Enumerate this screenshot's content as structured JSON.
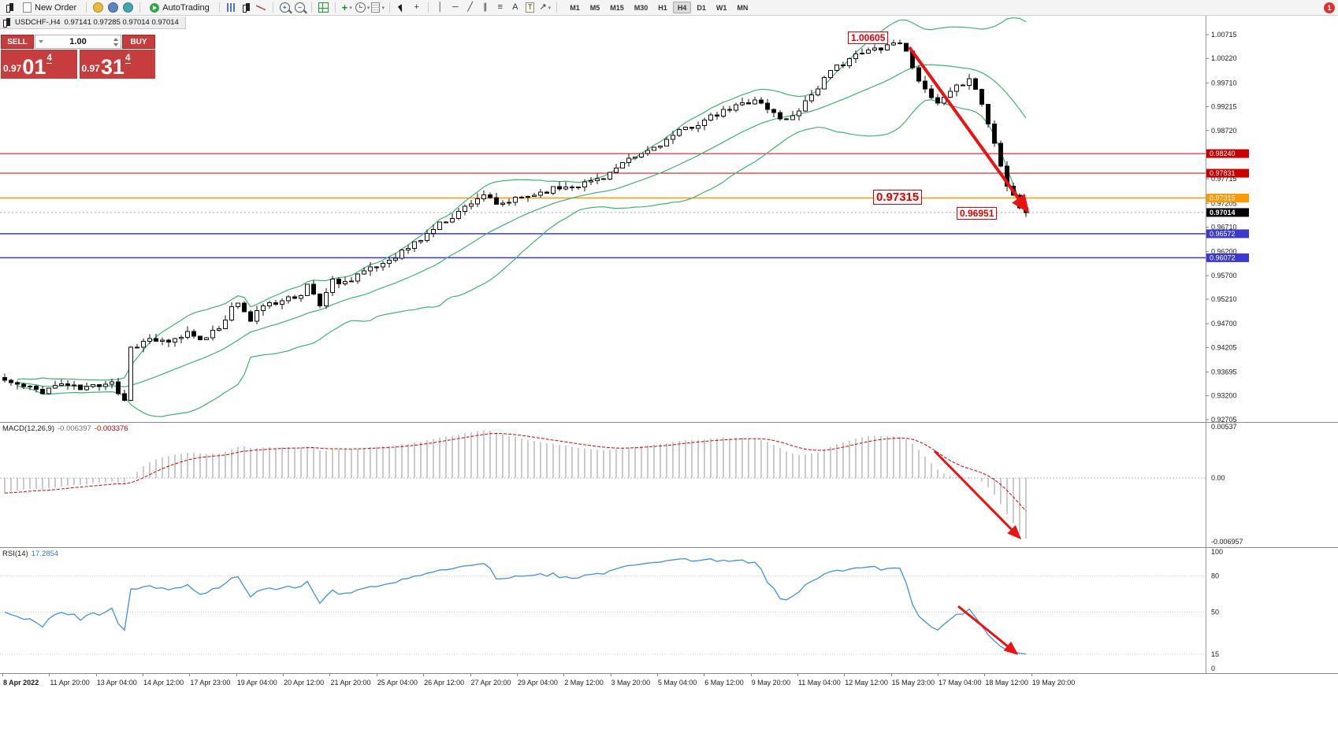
{
  "toolbar": {
    "new_order": "New Order",
    "autotrading": "AutoTrading",
    "timeframes": [
      "M1",
      "M5",
      "M15",
      "M30",
      "H1",
      "H4",
      "D1",
      "W1",
      "MN"
    ],
    "active_timeframe": "H4",
    "notification_count": "1",
    "icons": [
      {
        "t": "icon",
        "name": "chart-window-icon",
        "cls": "ic-candles"
      },
      {
        "t": "btn",
        "name": "new-order-button",
        "icon": "ic-doc",
        "label": "New Order"
      },
      {
        "t": "sep"
      },
      {
        "t": "icon",
        "name": "deposit-icon",
        "cls": "ic-coin"
      },
      {
        "t": "icon",
        "name": "profile-icon",
        "cls": "ic-person"
      },
      {
        "t": "icon",
        "name": "community-icon",
        "cls": "ic-globe"
      },
      {
        "t": "sep"
      },
      {
        "t": "btn",
        "name": "autotrading-button",
        "icon": "ic-play",
        "label": "AutoTrading"
      },
      {
        "t": "sep"
      },
      {
        "t": "icon",
        "name": "bar-chart-icon",
        "cls": "ic-bars"
      },
      {
        "t": "icon",
        "name": "candlestick-chart-icon",
        "cls": "ic-candles"
      },
      {
        "t": "icon",
        "name": "line-chart-icon",
        "cls": "ic-line"
      },
      {
        "t": "sep"
      },
      {
        "t": "icon",
        "name": "zoom-in-icon",
        "cls": "ic-zoom",
        "glyph": "+"
      },
      {
        "t": "icon",
        "name": "zoom-out-icon",
        "cls": "ic-zoom",
        "glyph": "−"
      },
      {
        "t": "sep"
      },
      {
        "t": "icon",
        "name": "tile-windows-icon",
        "cls": "ic-grid"
      },
      {
        "t": "sep"
      },
      {
        "t": "icon",
        "name": "indicators-icon",
        "cls": "ic-ind",
        "glyph": "+",
        "caret": true
      },
      {
        "t": "icon",
        "name": "periods-icon",
        "cls": "ic-clock",
        "caret": true
      },
      {
        "t": "icon",
        "name": "templates-icon",
        "cls": "ic-tpl",
        "caret": true
      },
      {
        "t": "sep"
      },
      {
        "t": "icon",
        "name": "cursor-icon",
        "cls": "ic-cursor"
      },
      {
        "t": "icon",
        "name": "crosshair-icon",
        "cls": "ic-glyph",
        "glyph": "+"
      },
      {
        "t": "sep"
      },
      {
        "t": "icon",
        "name": "vertical-line-icon",
        "cls": "ic-glyph",
        "glyph": "│"
      },
      {
        "t": "icon",
        "name": "horizontal-line-icon",
        "cls": "ic-glyph",
        "glyph": "─"
      },
      {
        "t": "icon",
        "name": "trendline-icon",
        "cls": "ic-glyph",
        "glyph": "╱"
      },
      {
        "t": "icon",
        "name": "channel-icon",
        "cls": "ic-glyph",
        "glyph": "∥"
      },
      {
        "t": "icon",
        "name": "fibonacci-icon",
        "cls": "ic-glyph",
        "glyph": "≡"
      },
      {
        "t": "icon",
        "name": "text-icon",
        "cls": "ic-glyph",
        "glyph": "A"
      },
      {
        "t": "icon",
        "name": "text-label-icon",
        "cls": "ic-label",
        "glyph": "T"
      },
      {
        "t": "icon",
        "name": "arrows-icon",
        "cls": "ic-glyph",
        "glyph": "↗",
        "caret": true
      },
      {
        "t": "sep"
      }
    ]
  },
  "chart_tab": {
    "symbol": "USDCHF-,H4",
    "ohlc": "0.97141 0.97285 0.97014 0.97014"
  },
  "oneclick": {
    "sell_label": "SELL",
    "buy_label": "BUY",
    "volume": "1.00",
    "sell_price": {
      "prefix": "0.97",
      "big": "01",
      "sup": "4"
    },
    "buy_price": {
      "prefix": "0.97",
      "big": "31",
      "sup": "4"
    }
  },
  "annotations": {
    "high_label": "1.00605",
    "mid_label": "0.97315",
    "low_label": "0.96951"
  },
  "price_axis": {
    "ticks": [
      "1.00715",
      "1.00220",
      "0.99710",
      "0.99215",
      "0.98720",
      "0.97715",
      "0.97205",
      "0.96710",
      "0.96200",
      "0.95700",
      "0.95210",
      "0.94700",
      "0.94205",
      "0.93695",
      "0.93200",
      "0.92705"
    ],
    "current": {
      "label": "0.97014",
      "price": 0.97014
    },
    "levels": [
      {
        "label": "0.98240",
        "price": 0.9824,
        "color": "#cc0000",
        "width": 1
      },
      {
        "label": "0.97831",
        "price": 0.97831,
        "color": "#cc0000",
        "width": 1
      },
      {
        "label": "0.97315",
        "price": 0.97315,
        "color": "#ff9900",
        "width": 1.5
      },
      {
        "label": "0.96572",
        "price": 0.96572,
        "color": "#3a3ad0",
        "width": 1.5
      },
      {
        "label": "0.96072",
        "price": 0.96072,
        "color": "#3a3ad0",
        "width": 1.5
      }
    ]
  },
  "macd_panel": {
    "name": "MACD(12,26,9)",
    "value_main": "-0.006397",
    "value_signal": "-0.003376",
    "axis": [
      {
        "label": "0.00537",
        "v": 0.00537
      },
      {
        "label": "0.00",
        "v": 0
      },
      {
        "label": "-0.006957",
        "v": -0.006957
      }
    ]
  },
  "rsi_panel": {
    "name": "RSI(14)",
    "value": "17.2854",
    "axis": [
      {
        "label": "100",
        "v": 100
      },
      {
        "label": "80",
        "v": 80
      },
      {
        "label": "50",
        "v": 50
      },
      {
        "label": "15",
        "v": 15
      },
      {
        "label": "0",
        "v": 0
      }
    ],
    "levels": [
      80,
      50,
      15
    ]
  },
  "time_axis": {
    "labels": [
      "8 Apr 2022",
      "11 Apr 20:00",
      "13 Apr 04:00",
      "14 Apr 12:00",
      "17 Apr 23:00",
      "19 Apr 04:00",
      "20 Apr 12:00",
      "21 Apr 20:00",
      "25 Apr 04:00",
      "26 Apr 12:00",
      "27 Apr 20:00",
      "29 Apr 04:00",
      "2 May 12:00",
      "3 May 20:00",
      "5 May 04:00",
      "6 May 12:00",
      "9 May 20:00",
      "11 May 04:00",
      "12 May 12:00",
      "15 May 23:00",
      "17 May 04:00",
      "18 May 12:00",
      "19 May 20:00"
    ]
  },
  "chart_data": {
    "type": "candlestick",
    "symbol": "USDCHF",
    "timeframe": "H4",
    "candle_count": 163,
    "ylim": [
      0.92655,
      1.01108
    ],
    "price_anchors": [
      [
        0,
        0.9352
      ],
      [
        3,
        0.9338
      ],
      [
        6,
        0.933
      ],
      [
        9,
        0.9346
      ],
      [
        12,
        0.9334
      ],
      [
        15,
        0.9344
      ],
      [
        17,
        0.9352
      ],
      [
        18,
        0.9326
      ],
      [
        19,
        0.9312
      ],
      [
        20,
        0.942
      ],
      [
        23,
        0.9438
      ],
      [
        26,
        0.9428
      ],
      [
        29,
        0.9452
      ],
      [
        32,
        0.9438
      ],
      [
        34,
        0.9462
      ],
      [
        36,
        0.9502
      ],
      [
        37,
        0.9515
      ],
      [
        39,
        0.9474
      ],
      [
        41,
        0.9512
      ],
      [
        43,
        0.9506
      ],
      [
        45,
        0.9532
      ],
      [
        47,
        0.9524
      ],
      [
        48,
        0.9552
      ],
      [
        50,
        0.951
      ],
      [
        52,
        0.956
      ],
      [
        54,
        0.9556
      ],
      [
        56,
        0.9574
      ],
      [
        58,
        0.9582
      ],
      [
        60,
        0.9596
      ],
      [
        62,
        0.9612
      ],
      [
        64,
        0.9628
      ],
      [
        66,
        0.9646
      ],
      [
        68,
        0.9668
      ],
      [
        70,
        0.9686
      ],
      [
        72,
        0.9702
      ],
      [
        74,
        0.9724
      ],
      [
        76,
        0.974
      ],
      [
        78,
        0.9714
      ],
      [
        80,
        0.9724
      ],
      [
        83,
        0.9736
      ],
      [
        86,
        0.9748
      ],
      [
        89,
        0.9756
      ],
      [
        92,
        0.9762
      ],
      [
        95,
        0.9776
      ],
      [
        97,
        0.9792
      ],
      [
        99,
        0.9808
      ],
      [
        102,
        0.983
      ],
      [
        105,
        0.9852
      ],
      [
        108,
        0.9876
      ],
      [
        111,
        0.9892
      ],
      [
        114,
        0.991
      ],
      [
        117,
        0.9928
      ],
      [
        119,
        0.9938
      ],
      [
        121,
        0.9916
      ],
      [
        124,
        0.9892
      ],
      [
        126,
        0.9918
      ],
      [
        128,
        0.9948
      ],
      [
        130,
        0.9978
      ],
      [
        132,
        1.0005
      ],
      [
        134,
        1.0022
      ],
      [
        136,
        1.0032
      ],
      [
        138,
        1.0042
      ],
      [
        140,
        1.005
      ],
      [
        142,
        1.0058
      ],
      [
        144,
        1.0008
      ],
      [
        146,
        0.9952
      ],
      [
        148,
        0.9926
      ],
      [
        150,
        0.9948
      ],
      [
        152,
        0.9972
      ],
      [
        153,
        0.9984
      ],
      [
        155,
        0.9928
      ],
      [
        157,
        0.9845
      ],
      [
        159,
        0.9762
      ],
      [
        161,
        0.9714
      ],
      [
        162,
        0.9701
      ]
    ],
    "session_high": 1.00605,
    "session_low": 0.96951,
    "bollinger": {
      "period": 20,
      "deviation": 2
    },
    "macd": {
      "fast": 12,
      "slow": 26,
      "signal": 9,
      "range": [
        -0.00724,
        0.00578
      ]
    },
    "rsi": {
      "period": 14,
      "range": [
        0,
        100
      ]
    },
    "colors": {
      "band": "#3cb371",
      "bull": "#ffffff",
      "bear": "#000000",
      "wick": "#111111",
      "macd_hist": "#9a9a9a",
      "macd_signal": "#d40000",
      "rsi_line": "#4090e0",
      "arrow": "#ee1111"
    }
  }
}
